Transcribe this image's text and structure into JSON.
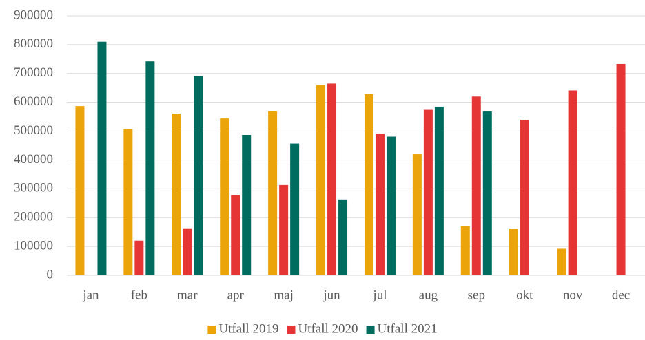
{
  "chart_data": {
    "type": "bar",
    "categories": [
      "jan",
      "feb",
      "mar",
      "apr",
      "maj",
      "jun",
      "jul",
      "aug",
      "sep",
      "okt",
      "nov",
      "dec"
    ],
    "series": [
      {
        "name": "Utfall 2019",
        "color": "#eba40a",
        "values": [
          587000,
          507000,
          561000,
          544000,
          569000,
          660000,
          628000,
          420000,
          170000,
          162000,
          92000,
          null
        ]
      },
      {
        "name": "Utfall 2020",
        "color": "#e53535",
        "values": [
          null,
          120000,
          163000,
          278000,
          313000,
          665000,
          491000,
          574000,
          620000,
          539000,
          641000,
          733000
        ]
      },
      {
        "name": "Utfall 2021",
        "color": "#006b5f",
        "values": [
          810000,
          742000,
          691000,
          487000,
          457000,
          263000,
          481000,
          585000,
          568000,
          null,
          null,
          null
        ]
      }
    ],
    "ylim": [
      0,
      900000
    ],
    "yticks": [
      0,
      100000,
      200000,
      300000,
      400000,
      500000,
      600000,
      700000,
      800000,
      900000
    ],
    "grid": true,
    "legend": "bottom"
  }
}
